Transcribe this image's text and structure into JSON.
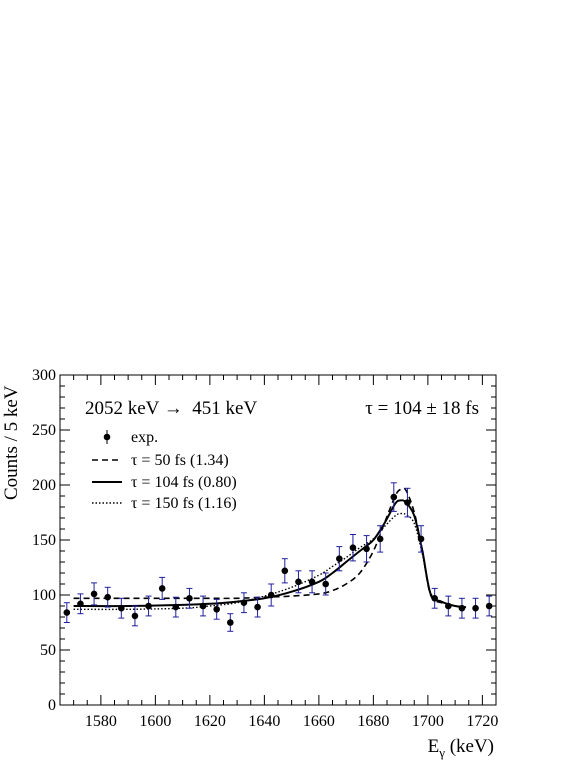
{
  "chart_data": {
    "type": "scatter",
    "title": "",
    "xlabel": "Eγ (keV)",
    "ylabel": "Counts / 5 keV",
    "xlim": [
      1565,
      1725
    ],
    "ylim": [
      0,
      300
    ],
    "x_ticks": [
      1580,
      1600,
      1620,
      1640,
      1660,
      1680,
      1700,
      1720
    ],
    "y_ticks": [
      0,
      50,
      100,
      150,
      200,
      250,
      300
    ],
    "grid": false,
    "legend_position": "top-left",
    "annotations": {
      "transition": "2052 keV →  451 keV",
      "lifetime": "τ = 104 ± 18 fs"
    },
    "legend": [
      {
        "label": "exp.",
        "style": "marker"
      },
      {
        "label": "τ =   50 fs  (1.34)",
        "style": "dashed"
      },
      {
        "label": "τ = 104 fs  (0.80)",
        "style": "solid"
      },
      {
        "label": "τ = 150 fs  (1.16)",
        "style": "dotted"
      }
    ],
    "colors": {
      "points": "#000000",
      "error_bars": "#1f1f9f",
      "curves": "#000000"
    },
    "series": [
      {
        "name": "exp.",
        "x": [
          1567.5,
          1572.5,
          1577.5,
          1582.5,
          1587.5,
          1592.5,
          1597.5,
          1602.5,
          1607.5,
          1612.5,
          1617.5,
          1622.5,
          1627.5,
          1632.5,
          1637.5,
          1642.5,
          1647.5,
          1652.5,
          1657.5,
          1662.5,
          1667.5,
          1672.5,
          1677.5,
          1682.5,
          1687.5,
          1692.5,
          1697.5,
          1702.5,
          1707.5,
          1712.5,
          1717.5,
          1722.5
        ],
        "y": [
          84,
          92,
          101,
          98,
          88,
          81,
          90,
          106,
          89,
          97,
          90,
          87,
          75,
          93,
          89,
          100,
          122,
          112,
          112,
          110,
          133,
          143,
          142,
          151,
          189,
          184,
          151,
          97,
          90,
          88,
          88,
          90
        ],
        "yerr": [
          9,
          9,
          10,
          9,
          9,
          9,
          9,
          10,
          9,
          9,
          9,
          9,
          8,
          9,
          9,
          10,
          11,
          10,
          10,
          10,
          11,
          12,
          12,
          12,
          13,
          13,
          12,
          9,
          9,
          9,
          9,
          9
        ]
      },
      {
        "name": "τ =   50 fs  (1.34)",
        "x": [
          1570,
          1590,
          1610,
          1620,
          1630,
          1640,
          1650,
          1660,
          1665,
          1670,
          1675,
          1680,
          1684,
          1688,
          1690,
          1692,
          1695,
          1698,
          1701,
          1705,
          1710,
          1714
        ],
        "y": [
          97,
          97,
          97,
          97,
          97,
          98,
          99,
          101,
          104,
          110,
          120,
          140,
          165,
          190,
          196,
          195,
          175,
          140,
          100,
          93,
          90,
          89
        ]
      },
      {
        "name": "τ = 104 fs  (0.80)",
        "x": [
          1570,
          1590,
          1610,
          1620,
          1630,
          1640,
          1650,
          1660,
          1665,
          1670,
          1675,
          1680,
          1684,
          1688,
          1690,
          1692,
          1695,
          1698,
          1701,
          1705,
          1710,
          1714
        ],
        "y": [
          90,
          90,
          91,
          92,
          94,
          97,
          103,
          112,
          120,
          130,
          140,
          150,
          165,
          183,
          186,
          184,
          172,
          140,
          101,
          94,
          90,
          89
        ]
      },
      {
        "name": "τ = 150 fs  (1.16)",
        "x": [
          1570,
          1590,
          1610,
          1620,
          1630,
          1640,
          1650,
          1660,
          1665,
          1670,
          1675,
          1680,
          1684,
          1688,
          1690,
          1692,
          1695,
          1698,
          1701,
          1705,
          1710,
          1714
        ],
        "y": [
          87,
          87,
          88,
          90,
          93,
          99,
          107,
          118,
          126,
          134,
          143,
          151,
          162,
          172,
          174,
          173,
          165,
          137,
          102,
          94,
          90,
          89
        ]
      }
    ]
  }
}
